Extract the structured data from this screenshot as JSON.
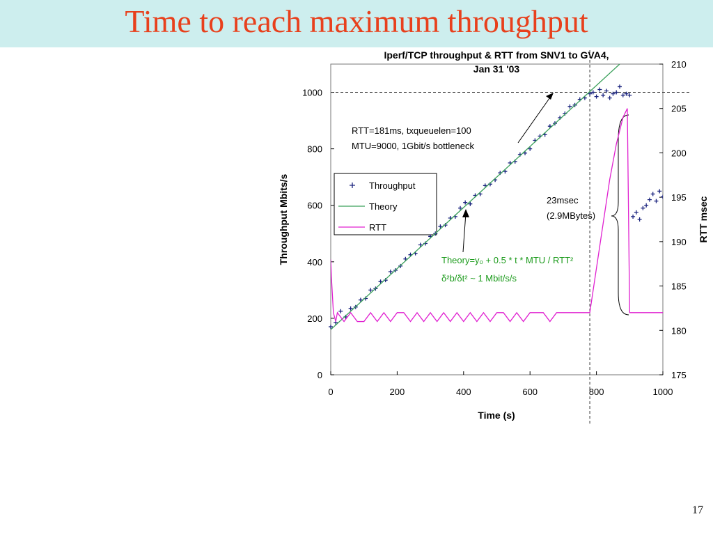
{
  "title": "Time to reach maximum throughput",
  "page_number": "17",
  "chart_data": {
    "type": "combo",
    "title": [
      "Iperf/TCP throughput  & RTT from SNV1 to GVA4,",
      "Jan 31 '03"
    ],
    "xlabel": "Time (s)",
    "ylabel": "Throughput Mbits/s",
    "y2label": "RTT msec",
    "annotations": [
      "RTT=181ms, txqueuelen=100",
      "MTU=9000, 1Gbit/s bottleneck",
      "23msec",
      "(2.9MBytes)",
      "Theory=y₀ + 0.5 * t * MTU / RTT²",
      "δ²b/δt² ~ 1 Mbit/s/s"
    ],
    "xlim": [
      0,
      1000
    ],
    "xticks": [
      0,
      200,
      400,
      600,
      {
        "value": 800,
        "label": "800"
      },
      1000
    ],
    "ylim": [
      0,
      1100
    ],
    "yticks": [
      0,
      200,
      400,
      600,
      800,
      1000
    ],
    "y2lim": [
      175,
      210
    ],
    "y2ticks": [
      175,
      180,
      185,
      190,
      195,
      200,
      205,
      210
    ],
    "hlines": [
      1000
    ],
    "vlines": [
      780
    ],
    "series": [
      {
        "name": "Throughput",
        "type": "scatter",
        "color": "#1a237e",
        "x": [
          0,
          15,
          30,
          45,
          60,
          75,
          90,
          105,
          120,
          135,
          150,
          165,
          180,
          195,
          210,
          225,
          240,
          255,
          270,
          285,
          300,
          315,
          330,
          345,
          360,
          375,
          390,
          405,
          420,
          435,
          450,
          465,
          480,
          495,
          510,
          525,
          540,
          555,
          570,
          585,
          600,
          615,
          630,
          645,
          660,
          675,
          690,
          705,
          720,
          735,
          750,
          765,
          780,
          790,
          800,
          810,
          820,
          830,
          840,
          850,
          860,
          870,
          880,
          890,
          900,
          910,
          920,
          930,
          940,
          950,
          960,
          970,
          980,
          990,
          1000
        ],
        "values": [
          170,
          185,
          225,
          205,
          235,
          240,
          265,
          270,
          300,
          305,
          330,
          335,
          365,
          370,
          385,
          410,
          425,
          430,
          460,
          465,
          490,
          500,
          525,
          530,
          555,
          560,
          590,
          610,
          605,
          635,
          640,
          670,
          675,
          690,
          715,
          720,
          750,
          755,
          780,
          785,
          800,
          830,
          845,
          850,
          880,
          890,
          910,
          925,
          950,
          955,
          975,
          980,
          995,
          1000,
          985,
          1010,
          990,
          1005,
          980,
          995,
          1000,
          1020,
          990,
          995,
          990,
          560,
          575,
          550,
          590,
          600,
          620,
          640,
          615,
          650,
          630
        ]
      },
      {
        "name": "Theory",
        "type": "line",
        "color": "#3aa05a",
        "x": [
          0,
          870
        ],
        "values": [
          160,
          1100
        ]
      },
      {
        "name": "RTT",
        "type": "line",
        "axis": "y2",
        "color": "#e020d0",
        "x": [
          0,
          2,
          8,
          15,
          20,
          40,
          60,
          80,
          100,
          120,
          140,
          160,
          180,
          200,
          220,
          240,
          260,
          280,
          300,
          320,
          340,
          360,
          380,
          400,
          420,
          440,
          460,
          480,
          500,
          520,
          540,
          560,
          580,
          600,
          620,
          640,
          660,
          680,
          700,
          720,
          740,
          760,
          780,
          800,
          820,
          840,
          860,
          880,
          893,
          900,
          1000
        ],
        "values": [
          188,
          186,
          182,
          181,
          182,
          181,
          182,
          181,
          181,
          182,
          181,
          182,
          181,
          182,
          182,
          181,
          182,
          181,
          182,
          181,
          182,
          181,
          182,
          181,
          182,
          181,
          182,
          181,
          182,
          182,
          181,
          182,
          181,
          182,
          182,
          182,
          181,
          182,
          182,
          182,
          182,
          182,
          182,
          187,
          192,
          197,
          201,
          204,
          205,
          182,
          182
        ]
      }
    ]
  }
}
